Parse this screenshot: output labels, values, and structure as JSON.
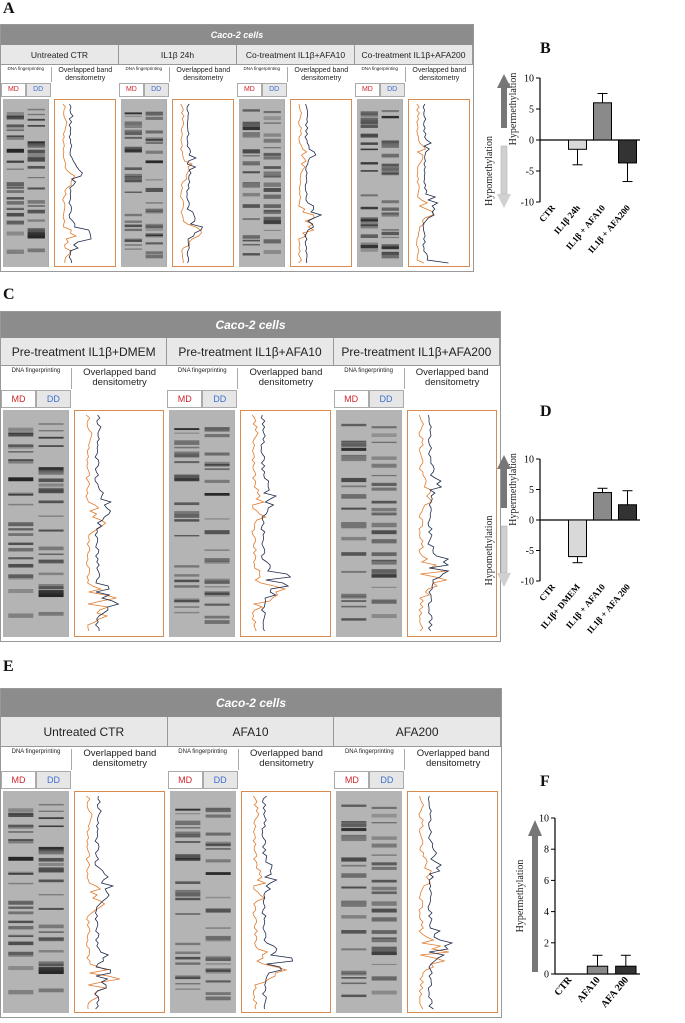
{
  "panel_labels": {
    "a": "A",
    "b": "B",
    "c": "C",
    "d": "D",
    "e": "E",
    "f": "F"
  },
  "banner": "Caco-2 cells",
  "sub_dna": "DNA fingerprinting",
  "sub_overlap": "Overlapped band densitometry",
  "md": "MD",
  "dd": "DD",
  "panelA": {
    "conditions": [
      "Untreated CTR",
      "IL1β 24h",
      "Co-treatment IL1β+AFA10",
      "Co-treatment IL1β+AFA200"
    ]
  },
  "panelC": {
    "conditions": [
      "Pre-treatment IL1β+DMEM",
      "Pre-treatment IL1β+AFA10",
      "Pre-treatment IL1β+AFA200"
    ]
  },
  "panelE": {
    "conditions": [
      "Untreated CTR",
      "AFA10",
      "AFA200"
    ]
  },
  "colors": {
    "md_text": "#d0252a",
    "dd_text": "#3d6fd0",
    "trace_orange": "#e07b2e",
    "trace_dark": "#1f2a4a",
    "banner": "#8c8c8c"
  },
  "chart_data": [
    {
      "id": "B",
      "type": "bar",
      "categories": [
        "CTR",
        "IL1β 24h",
        "IL1β + AFA10",
        "IL1β + AFA200"
      ],
      "values": [
        0,
        -1.5,
        6,
        -3.7
      ],
      "errors": [
        0,
        2.5,
        1.5,
        3.0
      ],
      "bar_colors": [
        "#ffffff",
        "#d9d9d9",
        "#8a8a8a",
        "#333333"
      ],
      "ylim": [
        -10,
        10
      ],
      "yticks": [
        10,
        5,
        0,
        -5,
        -10
      ],
      "label_up": "Hypermethylation",
      "label_down": "Hypomethylation"
    },
    {
      "id": "D",
      "type": "bar",
      "categories": [
        "CTR",
        "IL1β+ DMEM",
        "IL1β + AFA10",
        "IL1β + AFA 200"
      ],
      "values": [
        0,
        -6,
        4.5,
        2.5
      ],
      "errors": [
        0,
        1,
        0.7,
        2.3
      ],
      "bar_colors": [
        "#ffffff",
        "#d9d9d9",
        "#8a8a8a",
        "#333333"
      ],
      "ylim": [
        -10,
        10
      ],
      "yticks": [
        10,
        5,
        0,
        -5,
        -10
      ],
      "label_up": "Hypermethylation",
      "label_down": "Hypomethylation"
    },
    {
      "id": "F",
      "type": "bar",
      "categories": [
        "CTR",
        "AFA10",
        "AFA 200"
      ],
      "values": [
        0,
        0.5,
        0.5
      ],
      "errors": [
        0,
        0.7,
        0.7
      ],
      "bar_colors": [
        "#ffffff",
        "#8a8a8a",
        "#333333"
      ],
      "ylim": [
        0,
        10
      ],
      "yticks": [
        10,
        8,
        6,
        4,
        2,
        0
      ],
      "label_up": "Hypermethylation"
    }
  ]
}
